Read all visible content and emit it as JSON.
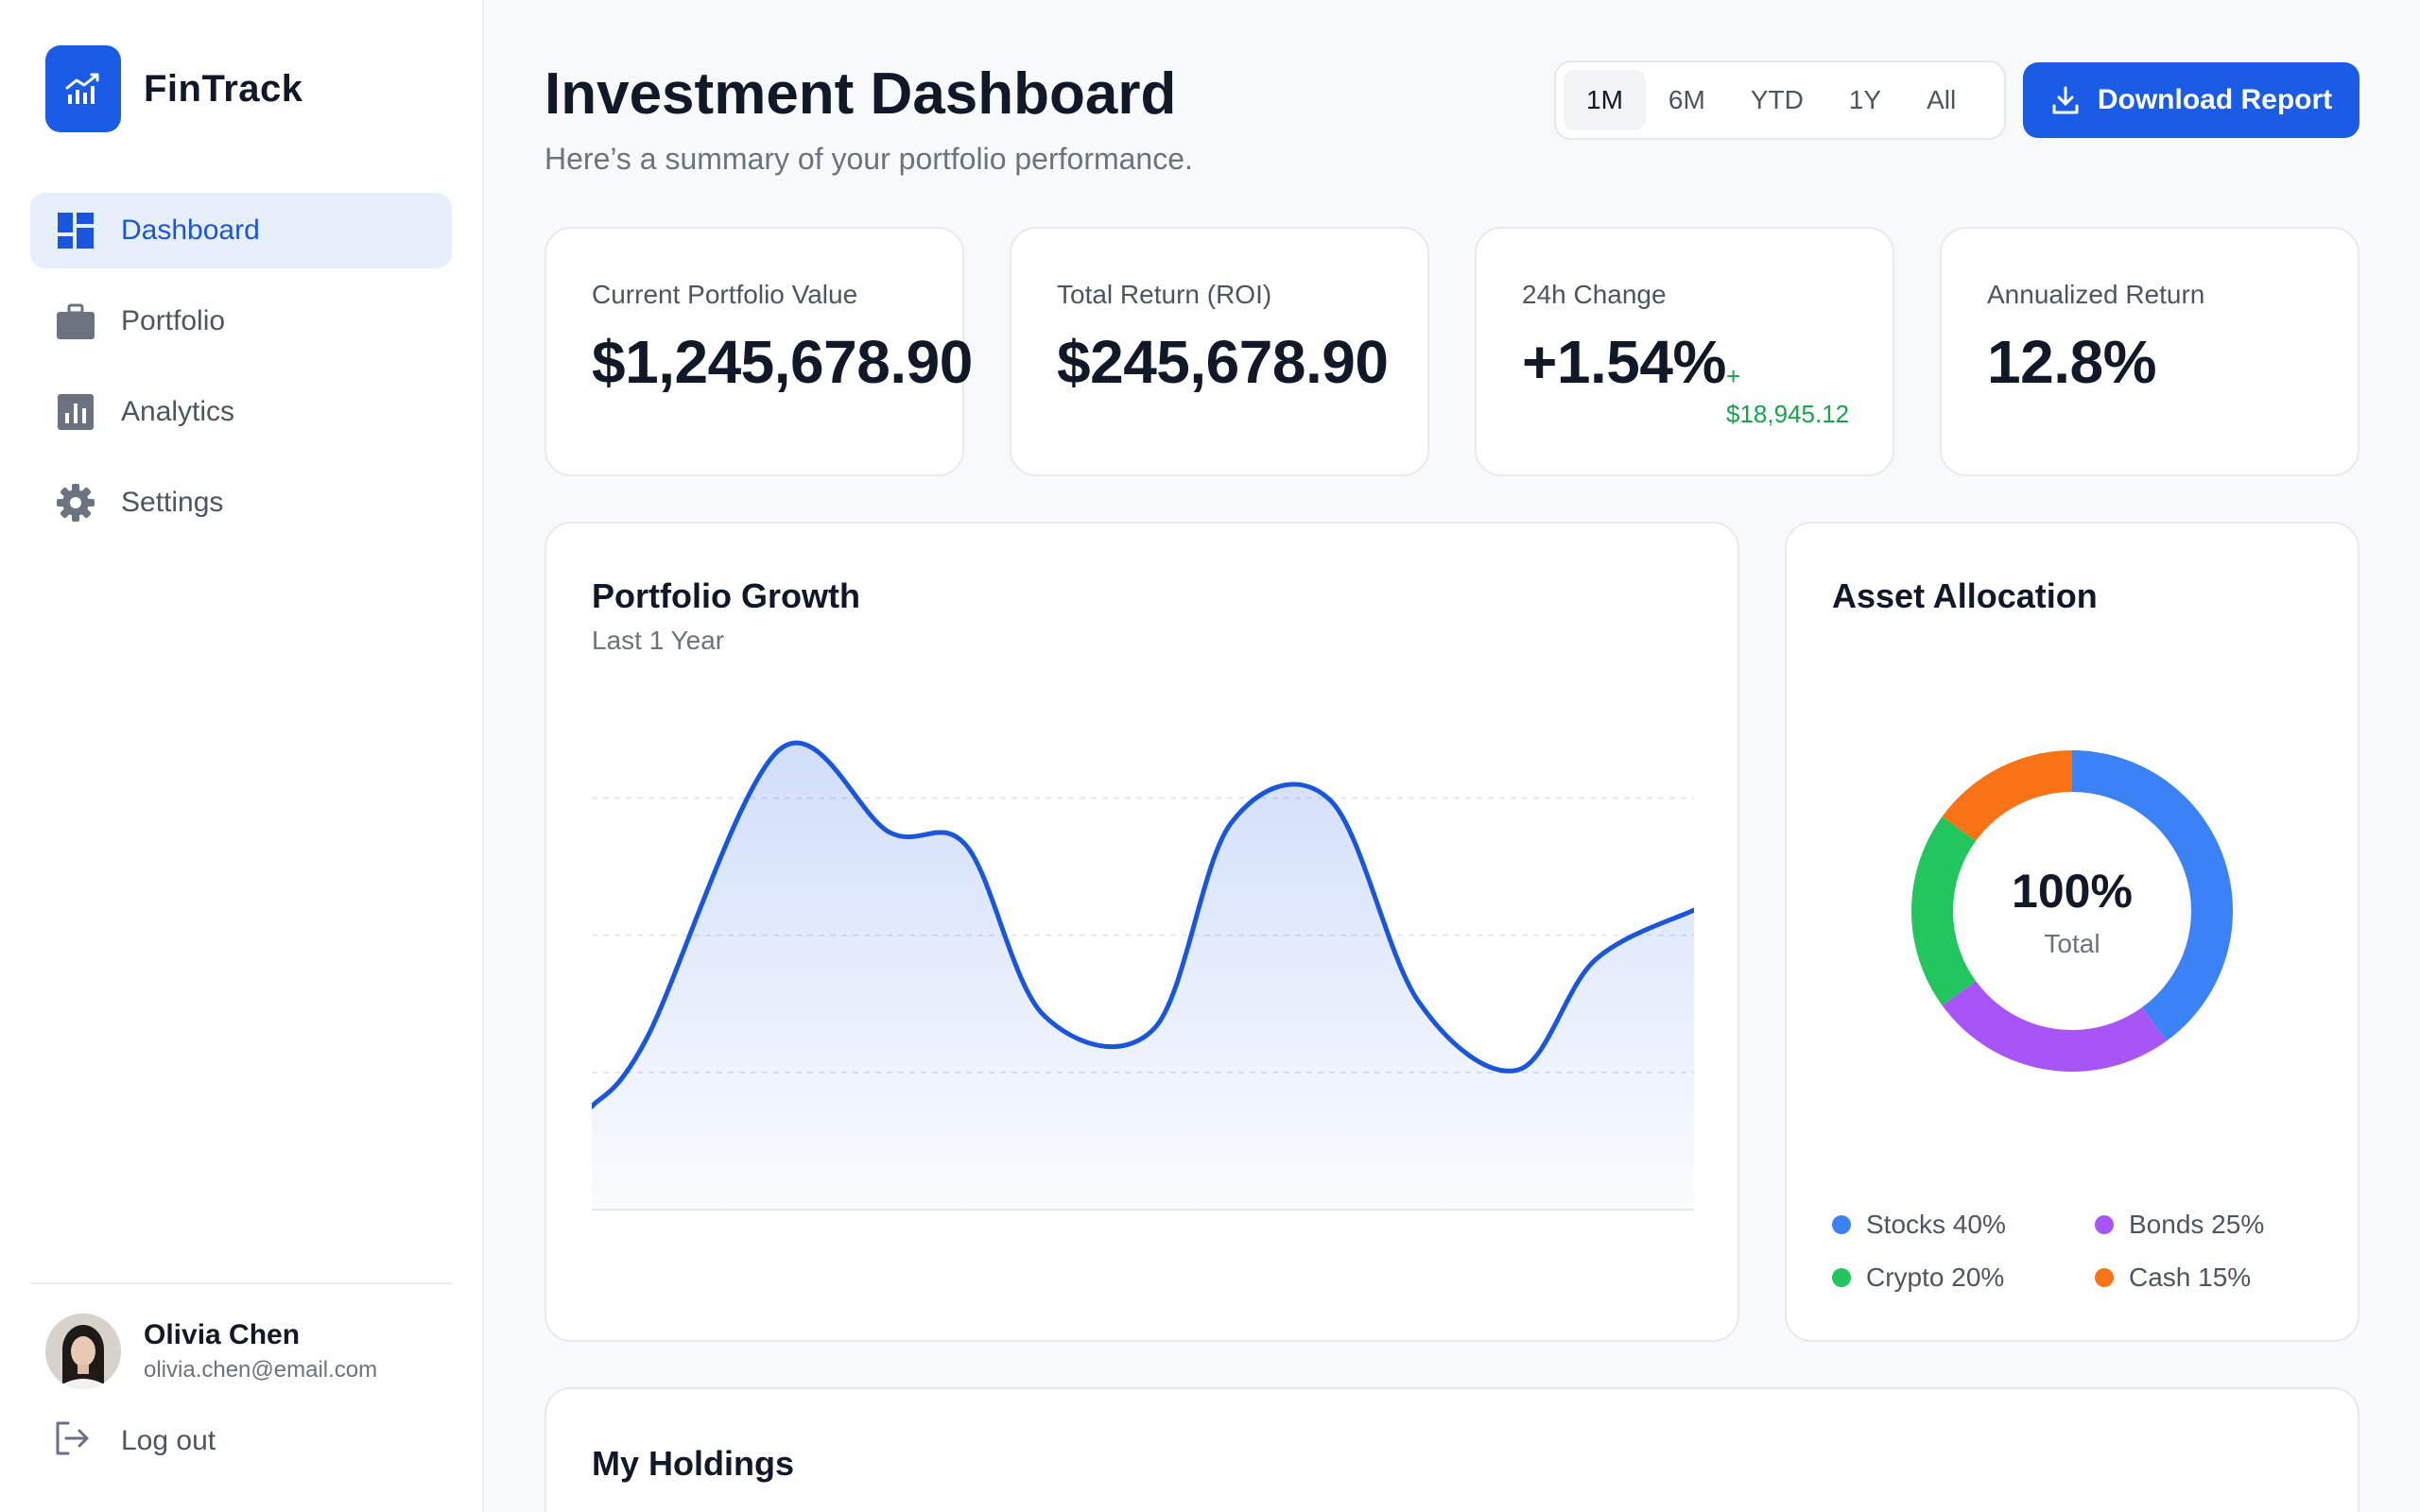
{
  "app": {
    "name": "FinTrack"
  },
  "sidebar": {
    "items": [
      {
        "label": "Dashboard",
        "icon": "dashboard-icon",
        "active": true
      },
      {
        "label": "Portfolio",
        "icon": "briefcase-icon",
        "active": false
      },
      {
        "label": "Analytics",
        "icon": "analytics-icon",
        "active": false
      },
      {
        "label": "Settings",
        "icon": "gear-icon",
        "active": false
      }
    ]
  },
  "user": {
    "name": "Olivia Chen",
    "email": "olivia.chen@email.com",
    "logout_label": "Log out"
  },
  "header": {
    "title": "Investment Dashboard",
    "subtitle": "Here’s a summary of your portfolio performance.",
    "ranges": [
      "1M",
      "6M",
      "YTD",
      "1Y",
      "All"
    ],
    "active_range": "1M",
    "download_label": "Download Report"
  },
  "stats": [
    {
      "label": "Current Portfolio Value",
      "value": "$1,245,678.90"
    },
    {
      "label": "Total Return (ROI)",
      "value": "$245,678.90"
    },
    {
      "label": "24h Change",
      "value": "+1.54%",
      "delta_sign": "+",
      "delta_amount": "$18,945.12"
    },
    {
      "label": "Annualized Return",
      "value": "12.8%"
    }
  ],
  "growth": {
    "title": "Portfolio Growth",
    "subtitle": "Last 1 Year"
  },
  "allocation": {
    "title": "Asset Allocation",
    "center_value": "100%",
    "center_label": "Total",
    "legend": [
      {
        "label": "Stocks 40%"
      },
      {
        "label": "Bonds 25%"
      },
      {
        "label": "Crypto 20%"
      },
      {
        "label": "Cash 15%"
      }
    ]
  },
  "holdings": {
    "title": "My Holdings"
  },
  "colors": {
    "primary": "#1a5ce6",
    "positive": "#16a34a",
    "stocks": "#3b82f6",
    "bonds": "#a855f7",
    "crypto": "#22c55e",
    "cash": "#f97316"
  },
  "chart_data": {
    "type": "area",
    "title": "Portfolio Growth",
    "subtitle": "Last 1 Year",
    "x": [
      0,
      0.05,
      0.17,
      0.27,
      0.34,
      0.41,
      0.51,
      0.58,
      0.67,
      0.75,
      0.84,
      0.91,
      1.0
    ],
    "y": [
      0.25,
      0.4,
      1.03,
      0.85,
      0.82,
      0.45,
      0.42,
      0.87,
      0.92,
      0.48,
      0.33,
      0.57,
      0.68
    ],
    "grid": true,
    "legend": "none",
    "donut": {
      "type": "pie",
      "categories": [
        "Stocks",
        "Bonds",
        "Crypto",
        "Cash"
      ],
      "values": [
        40,
        25,
        20,
        15
      ]
    }
  }
}
